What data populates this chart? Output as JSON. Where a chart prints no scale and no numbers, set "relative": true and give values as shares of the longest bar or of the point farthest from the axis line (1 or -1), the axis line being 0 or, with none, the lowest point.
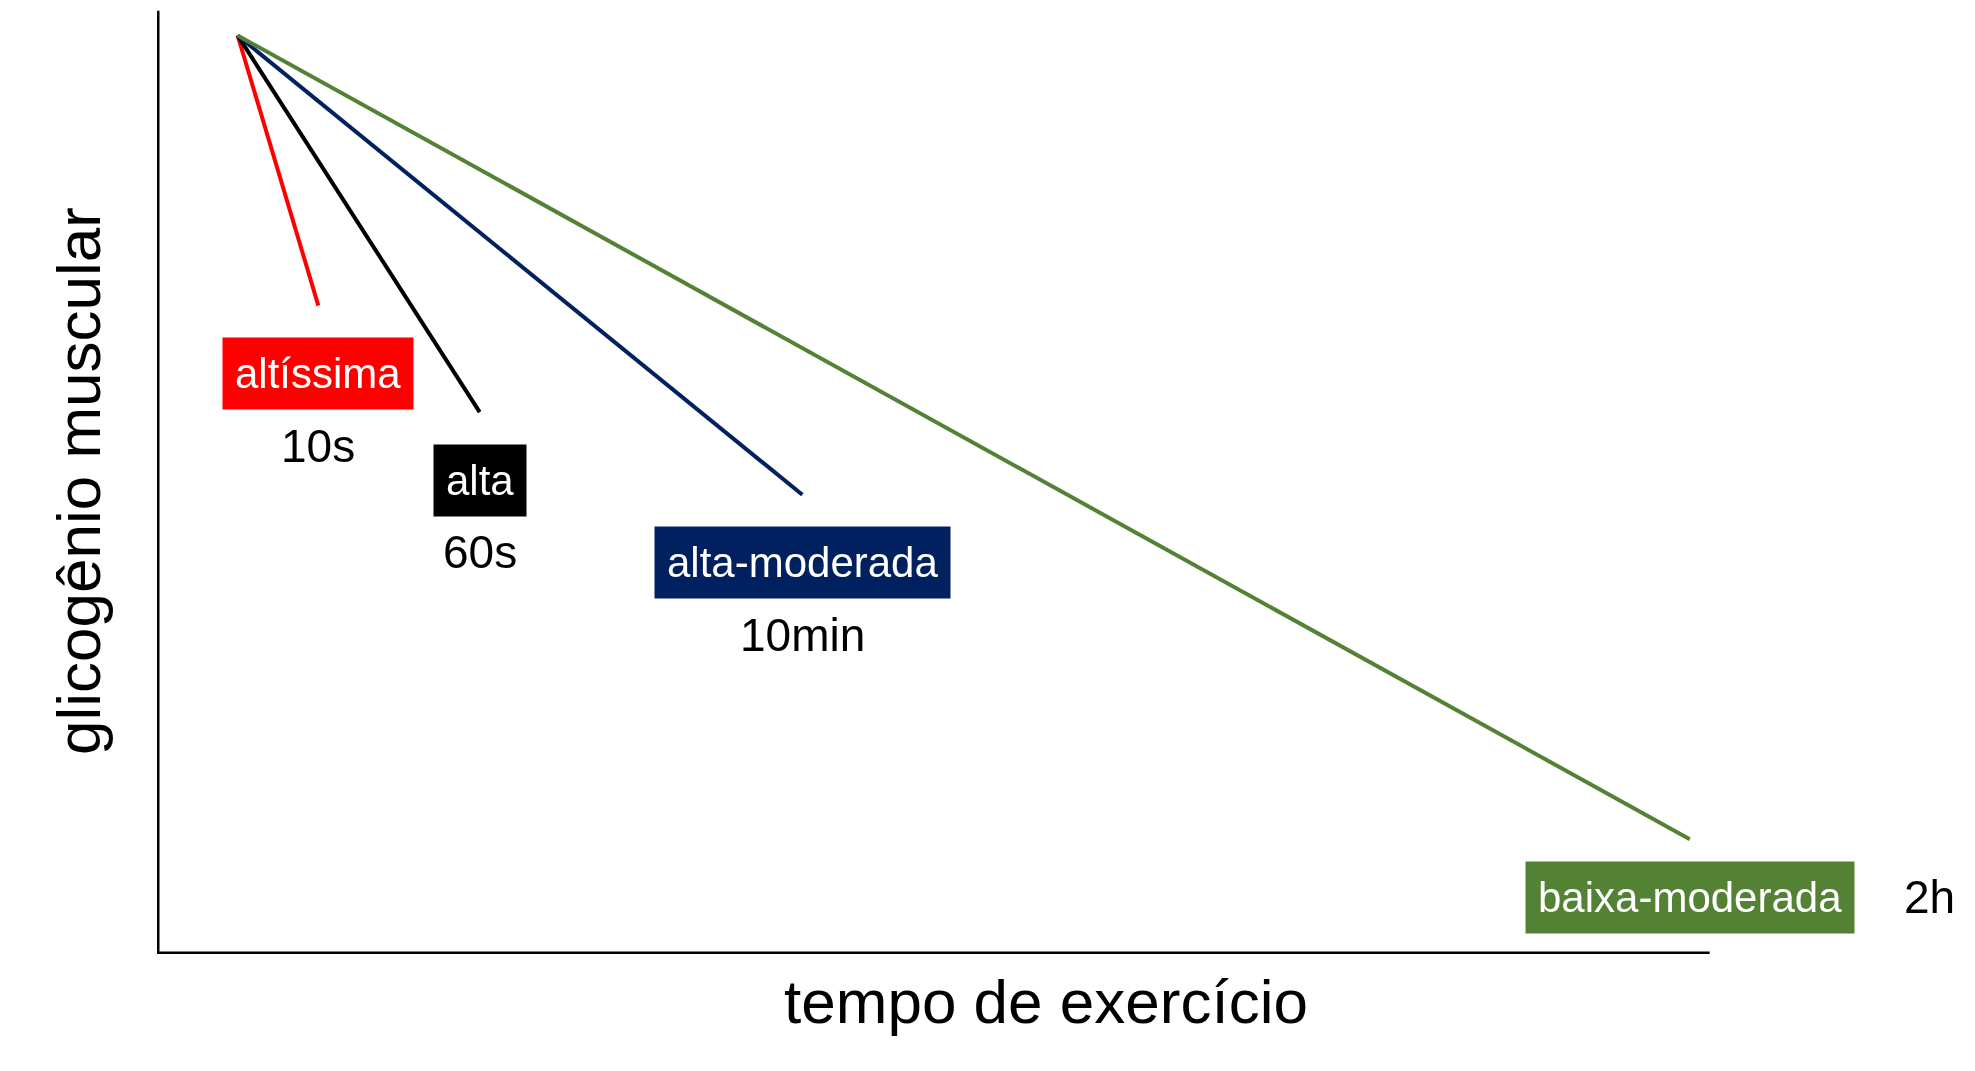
{
  "chart_data": {
    "type": "line",
    "relative": true,
    "xlabel": "tempo de exercício",
    "ylabel": "glicogênio muscular",
    "legend": false,
    "marker": "none",
    "line_style": "solid",
    "categories": [
      null,
      null,
      null,
      null,
      null,
      null,
      null,
      null,
      null,
      null,
      null,
      null,
      null,
      null,
      null,
      null,
      null,
      null,
      null,
      null
    ],
    "series": [
      {
        "name": "altíssima",
        "color": "#ff0000",
        "values": [
          null,
          1,
          0.706,
          null,
          null,
          null,
          null,
          null,
          null,
          null,
          null,
          null,
          null,
          null,
          null,
          null,
          null,
          null,
          null,
          null
        ]
      },
      {
        "name": "alta",
        "color": "#000000",
        "values": [
          null,
          1,
          null,
          null,
          0.59,
          null,
          null,
          null,
          null,
          null,
          null,
          null,
          null,
          null,
          null,
          null,
          null,
          null,
          null,
          null
        ]
      },
      {
        "name": "alta-moderada",
        "color": "#002060",
        "values": [
          null,
          1,
          null,
          null,
          null,
          null,
          null,
          null,
          0.5,
          null,
          null,
          null,
          null,
          null,
          null,
          null,
          null,
          null,
          null,
          null
        ]
      },
      {
        "name": "baixa-moderada",
        "color": "#548235",
        "values": [
          null,
          1,
          null,
          null,
          null,
          null,
          null,
          null,
          null,
          null,
          null,
          null,
          null,
          null,
          null,
          null,
          null,
          null,
          null,
          0.125
        ]
      }
    ],
    "annotations": [
      "10s",
      "60s",
      "10min",
      "2h"
    ]
  }
}
